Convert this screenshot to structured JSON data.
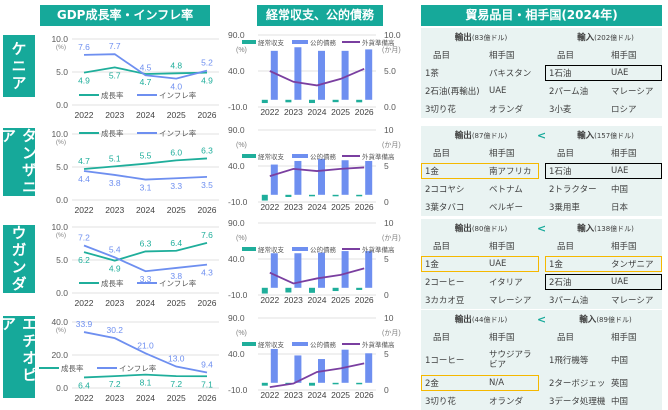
{
  "headers": {
    "gdp": "GDP成長率・インフレ率",
    "balance": "経常収支、公的債務",
    "trade": "貿易品目・相手国(2024年)"
  },
  "colors": {
    "accent": "#16a99a",
    "growth": "#1fae9b",
    "inflation": "#6e8ff0",
    "debt": "#6e8ff0",
    "reserves": "#7a3fa0",
    "highlight_gold": "#f5b800",
    "highlight_black": "#000000",
    "table_bg": "#e9f3f2"
  },
  "countries": [
    "ケニア",
    "タンザニア",
    "ウガンダ",
    "エチオピア"
  ],
  "legend": {
    "growth": "成長率",
    "inflation": "インフレ率",
    "current_account": "経常収支",
    "debt": "公的債務",
    "reserves": "外貨準備高"
  },
  "units": {
    "pct": "(%)",
    "months": "(か月)"
  },
  "chart_data": [
    {
      "type": "line",
      "country": "ケニア",
      "title": "GDP成長率・インフレ率",
      "categories": [
        "2022",
        "2023",
        "2024",
        "2025",
        "2026"
      ],
      "ylim": [
        0,
        10
      ],
      "yticks": [
        "10.0",
        "5.0",
        "0.0"
      ],
      "ylabel": "(%)",
      "series": [
        {
          "name": "成長率",
          "values": [
            4.9,
            5.7,
            4.7,
            4.8,
            4.9
          ]
        },
        {
          "name": "インフレ率",
          "values": [
            7.6,
            7.7,
            4.5,
            4.0,
            5.2
          ]
        }
      ]
    },
    {
      "type": "line",
      "country": "タンザニア",
      "title": "GDP成長率・インフレ率",
      "categories": [
        "2022",
        "2023",
        "2024",
        "2025",
        "2026"
      ],
      "ylim": [
        0,
        10
      ],
      "yticks": [
        "10.0",
        "5.0",
        "0.0"
      ],
      "ylabel": "(%)",
      "series": [
        {
          "name": "成長率",
          "values": [
            4.7,
            5.1,
            5.5,
            6.0,
            6.3
          ]
        },
        {
          "name": "インフレ率",
          "values": [
            4.4,
            3.8,
            3.1,
            3.3,
            3.5
          ]
        }
      ]
    },
    {
      "type": "line",
      "country": "ウガンダ",
      "title": "GDP成長率・インフレ率",
      "categories": [
        "2022",
        "2023",
        "2024",
        "2025",
        "2026"
      ],
      "ylim": [
        0,
        10
      ],
      "yticks": [
        "10.0",
        "5.0",
        "0.0"
      ],
      "ylabel": "(%)",
      "series": [
        {
          "name": "成長率",
          "values": [
            6.2,
            4.9,
            6.3,
            6.4,
            7.6
          ]
        },
        {
          "name": "インフレ率",
          "values": [
            7.2,
            5.4,
            3.3,
            3.8,
            4.3
          ]
        }
      ]
    },
    {
      "type": "line",
      "country": "エチオピア",
      "title": "GDP成長率・インフレ率",
      "categories": [
        "2022",
        "2023",
        "2024",
        "2025",
        "2026"
      ],
      "ylim": [
        0,
        40
      ],
      "yticks": [
        "40.0",
        "20.0",
        "0.0"
      ],
      "ylabel": "(%)",
      "series": [
        {
          "name": "成長率",
          "values": [
            6.4,
            7.2,
            8.1,
            7.2,
            7.1
          ]
        },
        {
          "name": "インフレ率",
          "values": [
            33.9,
            30.2,
            21.0,
            13.0,
            9.4
          ]
        }
      ]
    },
    {
      "type": "bar",
      "country": "ケニア",
      "title": "経常収支、公的債務",
      "categories": [
        "2022",
        "2023",
        "2024",
        "2025",
        "2026"
      ],
      "ylim": [
        -10,
        90
      ],
      "yticks": [
        "90.0",
        "40.0",
        "-10.0"
      ],
      "ylabel": "(%)",
      "y2lim": [
        0,
        10
      ],
      "y2ticks": [
        "10.0",
        "5.0",
        "0.0"
      ],
      "y2label": "(か月)",
      "series": [
        {
          "name": "経常収支",
          "axis": "left",
          "kind": "bar",
          "values": [
            -4.5,
            -3.5,
            -4.5,
            -3.3,
            -3.5
          ]
        },
        {
          "name": "公的債務",
          "axis": "left",
          "kind": "bar",
          "values": [
            68,
            73,
            68,
            68,
            70
          ]
        },
        {
          "name": "外貨準備高",
          "axis": "right",
          "kind": "line",
          "values": [
            5.0,
            3.5,
            3.0,
            3.9,
            5.3
          ]
        }
      ]
    },
    {
      "type": "bar",
      "country": "タンザニア",
      "title": "経常収支、公的債務",
      "categories": [
        "2022",
        "2023",
        "2024",
        "2025",
        "2026"
      ],
      "ylim": [
        -10,
        90
      ],
      "yticks": [
        "90.0",
        "40.0",
        "-10.0"
      ],
      "ylabel": "(%)",
      "y2lim": [
        0,
        10
      ],
      "y2ticks": [
        "10",
        "5",
        "0"
      ],
      "y2label": "(か月)",
      "series": [
        {
          "name": "経常収支",
          "axis": "left",
          "kind": "bar",
          "values": [
            -8,
            -3,
            -2,
            -2,
            -2
          ]
        },
        {
          "name": "公的債務",
          "axis": "left",
          "kind": "bar",
          "values": [
            42,
            47,
            50,
            48,
            47
          ]
        },
        {
          "name": "外貨準備高",
          "axis": "right",
          "kind": "line",
          "values": [
            3.6,
            4.6,
            4.3,
            4.6,
            4.8
          ]
        }
      ]
    },
    {
      "type": "bar",
      "country": "ウガンダ",
      "title": "経常収支、公的債務",
      "categories": [
        "2022",
        "2023",
        "2024",
        "2025",
        "2026"
      ],
      "ylim": [
        -10,
        90
      ],
      "yticks": [
        "90.0",
        "40.0",
        "-10.0"
      ],
      "ylabel": "(%)",
      "y2lim": [
        0,
        10
      ],
      "y2ticks": [
        "10",
        "5",
        "0"
      ],
      "y2label": "(か月)",
      "series": [
        {
          "name": "経常収支",
          "axis": "left",
          "kind": "bar",
          "values": [
            -8,
            -6.5,
            -7,
            -4.5,
            -3
          ]
        },
        {
          "name": "公的債務",
          "axis": "left",
          "kind": "bar",
          "values": [
            48,
            48,
            49,
            51,
            51
          ]
        },
        {
          "name": "外貨準備高",
          "axis": "right",
          "kind": "line",
          "values": [
            3.1,
            1.6,
            2.3,
            2.8,
            3.7
          ]
        }
      ]
    },
    {
      "type": "bar",
      "country": "エチオピア",
      "title": "経常収支、公的債務",
      "categories": [
        "2022",
        "2023",
        "2024",
        "2025",
        "2026"
      ],
      "ylim": [
        -10,
        90
      ],
      "yticks": [
        "90.0",
        "40.0",
        "-10.0"
      ],
      "ylabel": "(%)",
      "y2lim": [
        0,
        10
      ],
      "y2ticks": [
        "10",
        "5",
        "0"
      ],
      "y2label": "(か月)",
      "series": [
        {
          "name": "経常収支",
          "axis": "left",
          "kind": "bar",
          "values": [
            -4,
            -2.5,
            -4,
            -2,
            -2
          ]
        },
        {
          "name": "公的債務",
          "axis": "left",
          "kind": "bar",
          "values": [
            47,
            38,
            33,
            46,
            41
          ]
        },
        {
          "name": "外貨準備高",
          "axis": "right",
          "kind": "line",
          "values": [
            0.4,
            0.9,
            2.5,
            3.0,
            3.7
          ]
        }
      ]
    }
  ],
  "trade": [
    {
      "country": "ケニア",
      "export_label": "輸出",
      "export_amount": "(83億ドル)",
      "import_label": "輸入",
      "import_amount": "(202億ドル)",
      "comparison": "",
      "col_item": "品目",
      "col_partner": "相手国",
      "rows": [
        {
          "rank": "1",
          "ex_item": "茶",
          "ex_partner": "パキスタン",
          "im_item": "石油",
          "im_partner": "UAE"
        },
        {
          "rank": "2",
          "ex_item": "石油(再輸出)",
          "ex_partner": "UAE",
          "im_item": "パーム油",
          "im_partner": "マレーシア"
        },
        {
          "rank": "3",
          "ex_item": "切り花",
          "ex_partner": "オランダ",
          "im_item": "小麦",
          "im_partner": "ロシア"
        }
      ]
    },
    {
      "country": "タンザニア",
      "export_label": "輸出",
      "export_amount": "(87億ドル)",
      "import_label": "輸入",
      "import_amount": "(157億ドル)",
      "comparison": "<",
      "col_item": "品目",
      "col_partner": "相手国",
      "rows": [
        {
          "rank": "1",
          "ex_item": "金",
          "ex_partner": "南アフリカ",
          "im_item": "石油",
          "im_partner": "UAE"
        },
        {
          "rank": "2",
          "ex_item": "ココヤシ",
          "ex_partner": "ベトナム",
          "im_item": "トラクター",
          "im_partner": "中国"
        },
        {
          "rank": "3",
          "ex_item": "葉タバコ",
          "ex_partner": "ベルギー",
          "im_item": "乗用車",
          "im_partner": "日本"
        }
      ]
    },
    {
      "country": "ウガンダ",
      "export_label": "輸出",
      "export_amount": "(80億ドル)",
      "import_label": "輸入",
      "import_amount": "(138億ドル)",
      "comparison": "<",
      "col_item": "品目",
      "col_partner": "相手国",
      "rows": [
        {
          "rank": "1",
          "ex_item": "金",
          "ex_partner": "UAE",
          "im_item": "金",
          "im_partner": "タンザニア"
        },
        {
          "rank": "2",
          "ex_item": "コーヒー",
          "ex_partner": "イタリア",
          "im_item": "石油",
          "im_partner": "UAE"
        },
        {
          "rank": "3",
          "ex_item": "カカオ豆",
          "ex_partner": "マレーシア",
          "im_item": "パーム油",
          "im_partner": "マレーシア"
        }
      ]
    },
    {
      "country": "エチオピア",
      "export_label": "輸出",
      "export_amount": "(44億ドル)",
      "import_label": "輸入",
      "import_amount": "(89億ドル)",
      "comparison": "<",
      "col_item": "品目",
      "col_partner": "相手国",
      "rows": [
        {
          "rank": "1",
          "ex_item": "コーヒー",
          "ex_partner": "サウジアラビア",
          "im_item": "飛行機等",
          "im_partner": "中国"
        },
        {
          "rank": "2",
          "ex_item": "金",
          "ex_partner": "N/A",
          "im_item": "ターボジェット",
          "im_partner": "英国"
        },
        {
          "rank": "3",
          "ex_item": "切り花",
          "ex_partner": "オランダ",
          "im_item": "データ処理機",
          "im_partner": "中国"
        }
      ]
    }
  ]
}
